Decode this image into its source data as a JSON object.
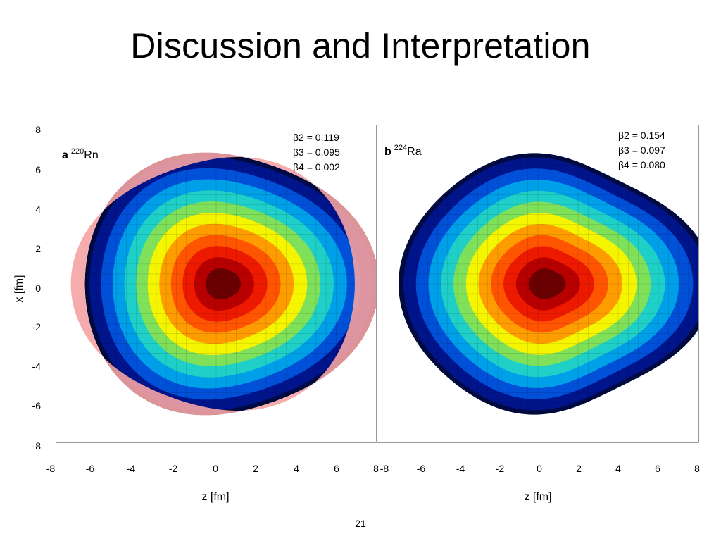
{
  "slide": {
    "title": "Discussion and Interpretation",
    "page_number": "21"
  },
  "chart_data": [
    {
      "type": "heatmap",
      "panel": "a",
      "nucleus_mass": "220",
      "nucleus_symbol": "Rn",
      "xlabel": "z [fm]",
      "ylabel": "x [fm]",
      "xlim": [
        -8,
        8
      ],
      "ylim": [
        -8,
        8
      ],
      "x_ticks": [
        "-8",
        "-6",
        "-4",
        "-2",
        "0",
        "2",
        "4",
        "6",
        "8"
      ],
      "y_ticks": [
        "8",
        "6",
        "4",
        "2",
        "0",
        "-2",
        "-4",
        "-6",
        "-8"
      ],
      "deformations": [
        {
          "label": "β2 = 0.119",
          "value": 0.119
        },
        {
          "label": "β3 = 0.095",
          "value": 0.095
        },
        {
          "label": "β4 = 0.002",
          "value": 0.002
        }
      ],
      "shape": {
        "R0": 6.6,
        "beta2": 0.119,
        "beta3": 0.095,
        "beta4": 0.002,
        "center_z": 0.3
      },
      "reflected_shape_shown": true
    },
    {
      "type": "heatmap",
      "panel": "b",
      "nucleus_mass": "224",
      "nucleus_symbol": "Ra",
      "xlabel": "z [fm]",
      "ylabel": "",
      "xlim": [
        -8,
        8
      ],
      "ylim": [
        -8,
        8
      ],
      "x_ticks": [
        "-8",
        "-6",
        "-4",
        "-2",
        "0",
        "2",
        "4",
        "6",
        "8"
      ],
      "y_ticks": [],
      "deformations": [
        {
          "label": "β2 = 0.154",
          "value": 0.154
        },
        {
          "label": "β3 = 0.097",
          "value": 0.097
        },
        {
          "label": "β4 = 0.080",
          "value": 0.08
        }
      ],
      "shape": {
        "R0": 6.5,
        "beta2": 0.154,
        "beta3": 0.097,
        "beta4": 0.08,
        "center_z": 0.4
      },
      "reflected_shape_shown": false
    }
  ],
  "colors": {
    "scale": [
      "#6b0000",
      "#b80000",
      "#ee1a00",
      "#ff5500",
      "#ff9d00",
      "#f5f500",
      "#7fe05a",
      "#1fd0c8",
      "#00a0e8",
      "#0050d8",
      "#00148c"
    ],
    "reflected_shape": "#f5a3a3",
    "frame": "#555555",
    "grid": "#d6d6d6"
  }
}
